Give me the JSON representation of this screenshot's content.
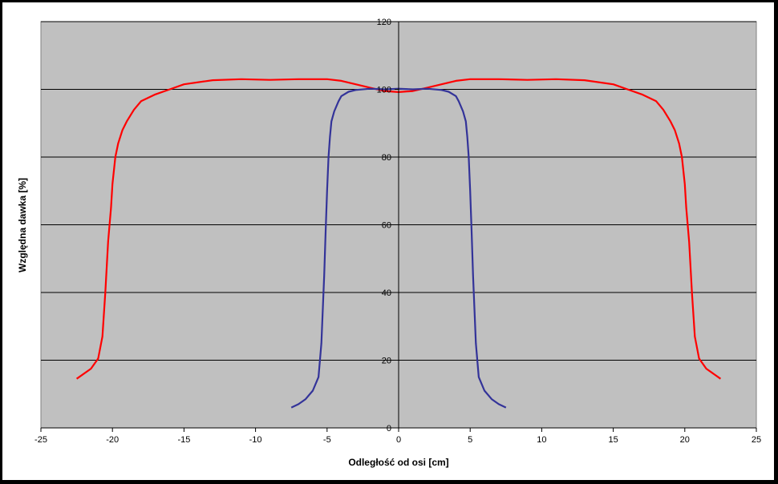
{
  "chart_data": {
    "type": "line",
    "title": "",
    "xlabel": "Odległość od osi [cm]",
    "ylabel": "Względna dawka [%]",
    "xlim": [
      -25,
      25
    ],
    "ylim": [
      0,
      120
    ],
    "xticks": [
      -25,
      -20,
      -15,
      -10,
      -5,
      0,
      5,
      10,
      15,
      20,
      25
    ],
    "yticks": [
      0,
      20,
      40,
      60,
      80,
      100,
      120
    ],
    "grid": "horizontal",
    "plot_background": "#C0C0C0",
    "series": [
      {
        "color": "#FF0000",
        "x": [
          -22.5,
          -21.5,
          -21.0,
          -20.7,
          -20.5,
          -20.3,
          -20.1,
          -20.0,
          -19.8,
          -19.6,
          -19.3,
          -19.0,
          -18.5,
          -18.0,
          -17.0,
          -16.0,
          -15.0,
          -13.0,
          -11.0,
          -9.0,
          -7.0,
          -5.0,
          -4.0,
          -3.0,
          -2.0,
          -1.0,
          0.0,
          1.0,
          2.0,
          3.0,
          4.0,
          5.0,
          7.0,
          9.0,
          11.0,
          13.0,
          15.0,
          16.0,
          17.0,
          18.0,
          18.5,
          19.0,
          19.3,
          19.6,
          19.8,
          20.0,
          20.1,
          20.3,
          20.5,
          20.7,
          21.0,
          21.5,
          22.5
        ],
        "y": [
          14.5,
          17.5,
          20.5,
          27.0,
          40.0,
          55.0,
          65.0,
          72.0,
          80.0,
          84.0,
          88.0,
          90.5,
          94.0,
          96.5,
          98.5,
          100.0,
          101.5,
          102.7,
          103.0,
          102.8,
          103.0,
          103.0,
          102.5,
          101.5,
          100.5,
          99.5,
          99.2,
          99.5,
          100.5,
          101.5,
          102.5,
          103.0,
          103.0,
          102.8,
          103.0,
          102.7,
          101.5,
          100.0,
          98.5,
          96.5,
          94.0,
          90.5,
          88.0,
          84.0,
          80.0,
          72.0,
          65.0,
          55.0,
          40.0,
          27.0,
          20.5,
          17.5,
          14.5
        ]
      },
      {
        "color": "#333399",
        "x": [
          -7.5,
          -7.0,
          -6.5,
          -6.0,
          -5.6,
          -5.4,
          -5.2,
          -5.1,
          -5.0,
          -4.9,
          -4.8,
          -4.7,
          -4.5,
          -4.2,
          -4.0,
          -3.5,
          -3.0,
          -2.0,
          -1.0,
          0.0,
          1.0,
          2.0,
          3.0,
          3.5,
          4.0,
          4.2,
          4.5,
          4.7,
          4.8,
          4.9,
          5.0,
          5.1,
          5.2,
          5.4,
          5.6,
          6.0,
          6.5,
          7.0,
          7.5
        ],
        "y": [
          6.0,
          7.0,
          8.5,
          11.0,
          15.0,
          25.0,
          45.0,
          58.0,
          70.0,
          80.0,
          86.0,
          90.5,
          93.5,
          96.5,
          98.0,
          99.3,
          99.8,
          100.2,
          100.0,
          100.2,
          100.0,
          100.2,
          99.8,
          99.3,
          98.0,
          96.5,
          93.5,
          90.5,
          86.0,
          80.0,
          70.0,
          58.0,
          45.0,
          25.0,
          15.0,
          11.0,
          8.5,
          7.0,
          6.0
        ]
      }
    ]
  }
}
